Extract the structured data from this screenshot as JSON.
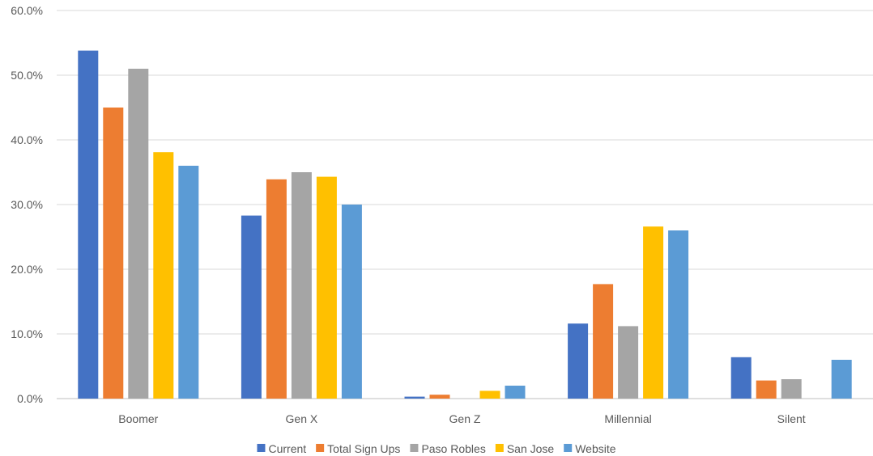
{
  "chart_data": {
    "type": "bar",
    "categories": [
      "Boomer",
      "Gen X",
      "Gen Z",
      "Millennial",
      "Silent"
    ],
    "series": [
      {
        "name": "Current",
        "color": "#4472C4",
        "values": [
          53.8,
          28.3,
          0.3,
          11.6,
          6.4
        ]
      },
      {
        "name": "Total Sign Ups",
        "color": "#ED7D31",
        "values": [
          45.0,
          33.9,
          0.6,
          17.7,
          2.8
        ]
      },
      {
        "name": "Paso Robles",
        "color": "#A5A5A5",
        "values": [
          51.0,
          35.0,
          0.0,
          11.2,
          3.0
        ]
      },
      {
        "name": "San Jose",
        "color": "#FFC000",
        "values": [
          38.1,
          34.3,
          1.2,
          26.6,
          0.0
        ]
      },
      {
        "name": "Website",
        "color": "#5B9BD5",
        "values": [
          36.0,
          30.0,
          2.0,
          26.0,
          6.0
        ]
      }
    ],
    "y_ticks": [
      "0.0%",
      "10.0%",
      "20.0%",
      "30.0%",
      "40.0%",
      "50.0%",
      "60.0%"
    ],
    "ylim": [
      0,
      60
    ],
    "y_unit": "percent",
    "grid": true,
    "legend_position": "bottom"
  }
}
